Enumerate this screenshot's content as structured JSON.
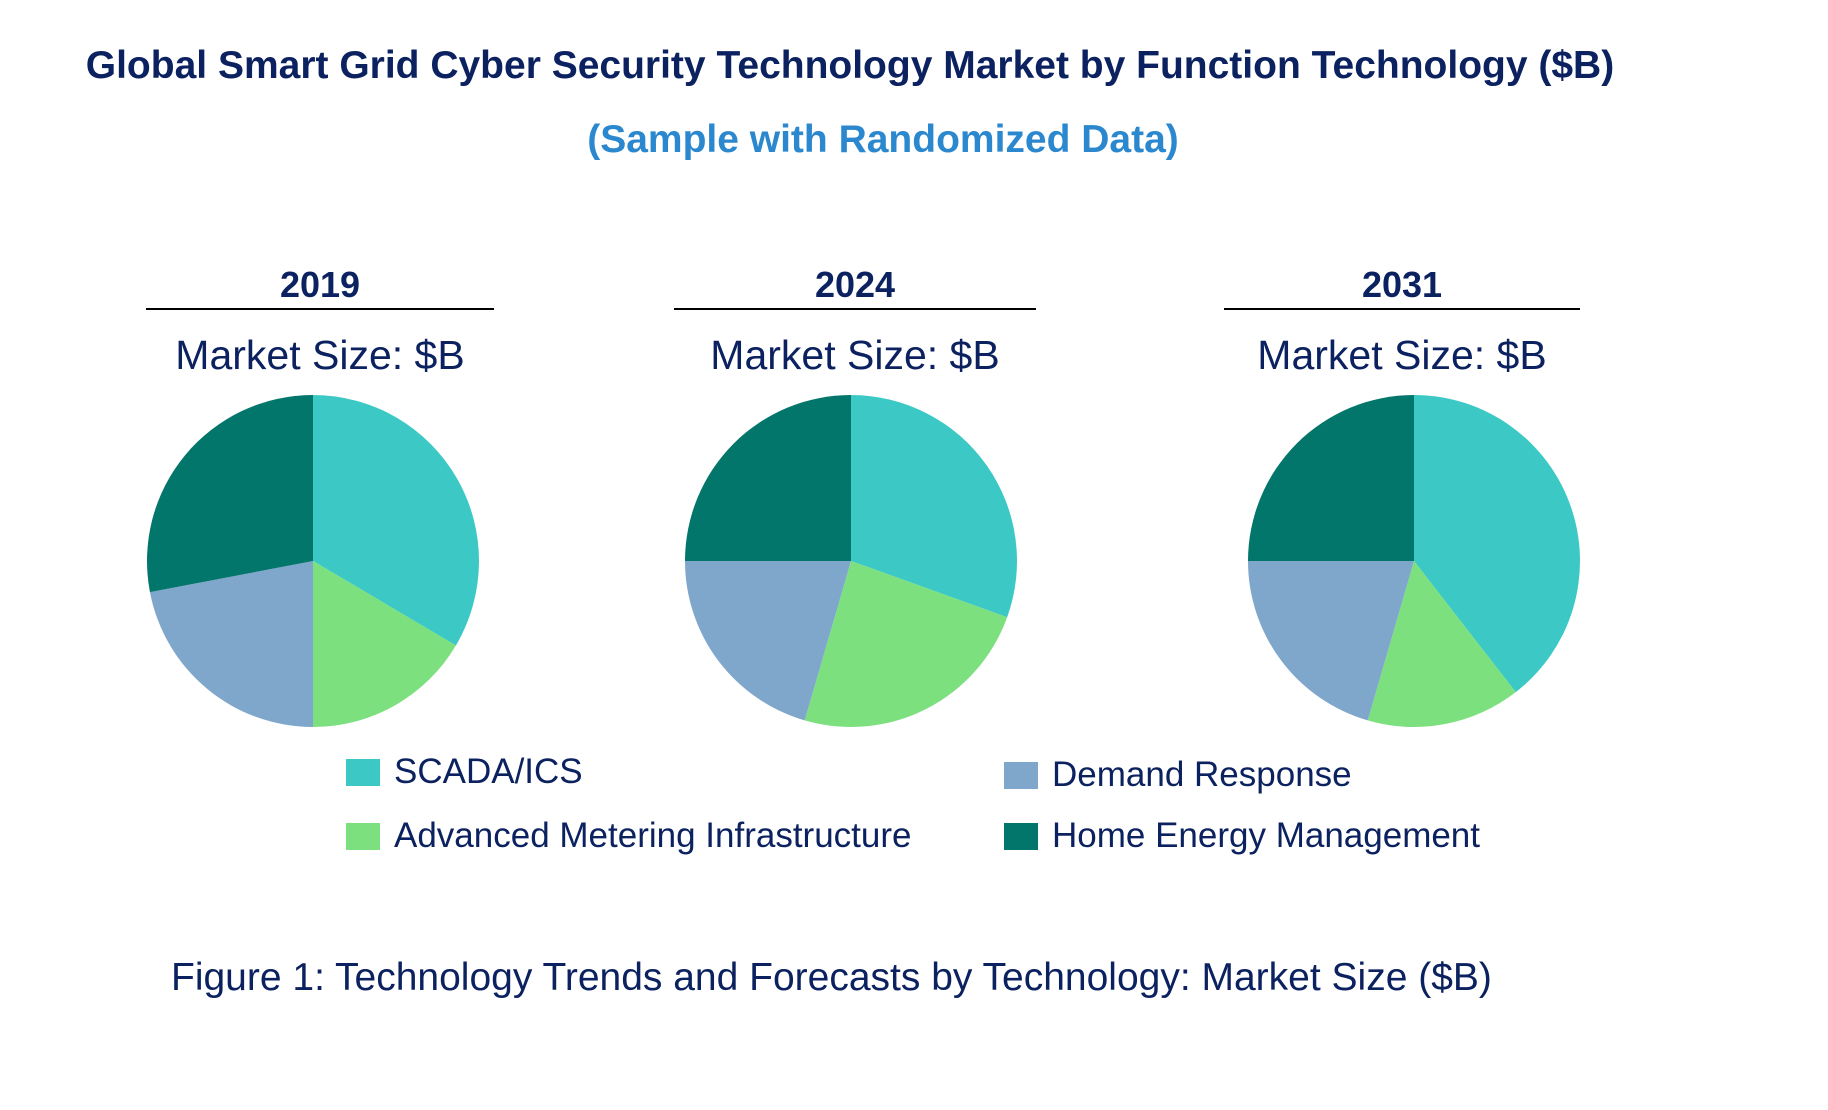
{
  "chart_data": {
    "type": "pie",
    "title": "Global Smart Grid Cyber Security Technology Market by Function Technology ($B)",
    "subtitle": "(Sample with Randomized Data)",
    "caption": "Figure 1: Technology Trends and Forecasts by Technology: Market Size ($B)",
    "legend_position": "bottom",
    "categories": [
      "SCADA/ICS",
      "Advanced Metering Infrastructure",
      "Demand Response",
      "Home Energy Management"
    ],
    "colors": [
      "#3cc9c5",
      "#7ce07f",
      "#7fa6cb",
      "#02766b"
    ],
    "pies": [
      {
        "year": "2019",
        "market_label": "Market Size: $B",
        "values": [
          33.5,
          16.5,
          22,
          28
        ]
      },
      {
        "year": "2024",
        "market_label": "Market Size: $B",
        "values": [
          30.5,
          24,
          20.5,
          25
        ]
      },
      {
        "year": "2031",
        "market_label": "Market Size: $B",
        "values": [
          39.5,
          15,
          20.5,
          25
        ]
      }
    ]
  }
}
